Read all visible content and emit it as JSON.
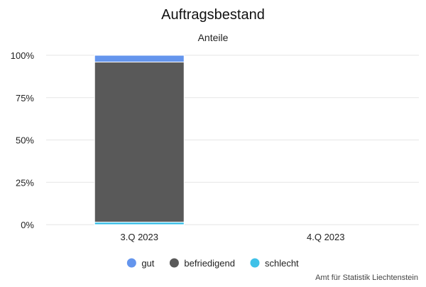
{
  "chart_data": {
    "type": "bar",
    "stacked": true,
    "percent": true,
    "title": "Auftragsbestand",
    "subtitle": "Anteile",
    "categories": [
      "3.Q 2023",
      "4.Q 2023"
    ],
    "series": [
      {
        "name": "gut",
        "color": "#6495ED",
        "values": [
          4,
          null
        ]
      },
      {
        "name": "befriedigend",
        "color": "#595959",
        "values": [
          94.5,
          null
        ]
      },
      {
        "name": "schlecht",
        "color": "#3FC1E8",
        "values": [
          1.5,
          null
        ]
      }
    ],
    "ylim": [
      0,
      100
    ],
    "yticks": [
      "0%",
      "25%",
      "50%",
      "75%",
      "100%"
    ],
    "ytick_values": [
      0,
      25,
      50,
      75,
      100
    ],
    "grid": true,
    "legend_position": "bottom",
    "credit": "Amt für Statistik Liechtenstein"
  }
}
